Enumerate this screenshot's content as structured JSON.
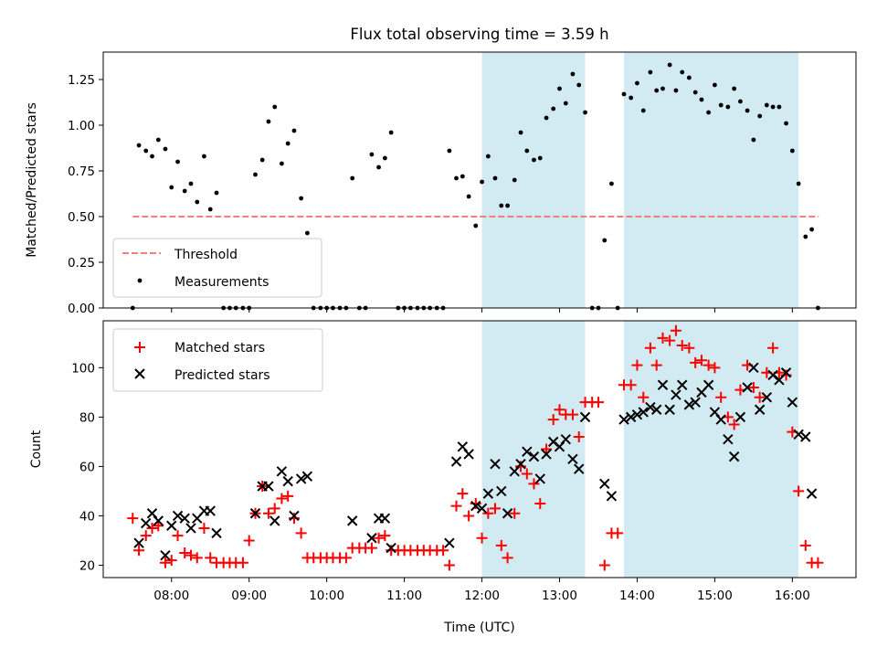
{
  "chart_data": [
    {
      "type": "scatter",
      "panel": "top",
      "title": "Flux total observing time = 3.59 h",
      "xlabel": "",
      "ylabel": "Matched/Predicted stars",
      "ylim": [
        0,
        1.4
      ],
      "xlim": [
        7.12,
        16.82
      ],
      "yticks": [
        0,
        0.25,
        0.5,
        0.75,
        1.0,
        1.25
      ],
      "ytick_labels": [
        "0.00",
        "0.25",
        "0.50",
        "0.75",
        "1.00",
        "1.25"
      ],
      "threshold": {
        "name": "Threshold",
        "value": 0.5,
        "x_range": [
          7.5,
          16.34
        ],
        "color": "#f08080"
      },
      "legend": [
        "Threshold",
        "Measurements"
      ],
      "legend_position": "lower-left",
      "shaded_regions": [
        [
          12.0,
          13.33
        ],
        [
          13.83,
          16.08
        ]
      ],
      "shade_color": "#add8e6",
      "series": [
        {
          "name": "Measurements",
          "color": "#000000",
          "x": [
            7.5,
            7.58,
            7.67,
            7.75,
            7.83,
            7.92,
            8.0,
            8.08,
            8.17,
            8.25,
            8.33,
            8.42,
            8.5,
            8.58,
            8.67,
            8.75,
            8.83,
            8.92,
            9.0,
            9.08,
            9.17,
            9.25,
            9.33,
            9.42,
            9.5,
            9.58,
            9.67,
            9.75,
            9.83,
            9.92,
            10.0,
            10.08,
            10.17,
            10.25,
            10.33,
            10.42,
            10.5,
            10.58,
            10.67,
            10.75,
            10.83,
            10.92,
            11.0,
            11.08,
            11.17,
            11.25,
            11.33,
            11.42,
            11.5,
            11.58,
            11.67,
            11.75,
            11.83,
            11.92,
            12.0,
            12.08,
            12.17,
            12.25,
            12.33,
            12.42,
            12.5,
            12.58,
            12.67,
            12.75,
            12.83,
            12.92,
            13.0,
            13.08,
            13.17,
            13.25,
            13.33,
            13.42,
            13.5,
            13.58,
            13.67,
            13.75,
            13.83,
            13.92,
            14.0,
            14.08,
            14.17,
            14.25,
            14.33,
            14.42,
            14.5,
            14.58,
            14.67,
            14.75,
            14.83,
            14.92,
            15.0,
            15.08,
            15.17,
            15.25,
            15.33,
            15.42,
            15.5,
            15.58,
            15.67,
            15.75,
            15.83,
            15.92,
            16.0,
            16.08,
            16.17,
            16.25,
            16.33
          ],
          "values": [
            0.0,
            0.89,
            0.86,
            0.83,
            0.92,
            0.87,
            0.66,
            0.8,
            0.64,
            0.68,
            0.58,
            0.83,
            0.54,
            0.63,
            0.0,
            0.0,
            0.0,
            0.0,
            0.0,
            0.73,
            0.81,
            1.02,
            1.1,
            0.79,
            0.9,
            0.97,
            0.6,
            0.41,
            0.0,
            0.0,
            0.0,
            0.0,
            0.0,
            0.0,
            0.71,
            0.0,
            0.0,
            0.84,
            0.77,
            0.82,
            0.96,
            0.0,
            0.0,
            0.0,
            0.0,
            0.0,
            0.0,
            0.0,
            0.0,
            0.86,
            0.71,
            0.72,
            0.61,
            0.45,
            0.69,
            0.83,
            0.71,
            0.56,
            0.56,
            0.7,
            0.96,
            0.86,
            0.81,
            0.82,
            1.04,
            1.09,
            1.2,
            1.12,
            1.28,
            1.22,
            1.07,
            0.0,
            0.0,
            0.37,
            0.68,
            0.0,
            1.17,
            1.15,
            1.23,
            1.08,
            1.29,
            1.19,
            1.2,
            1.33,
            1.19,
            1.29,
            1.26,
            1.18,
            1.14,
            1.07,
            1.22,
            1.11,
            1.1,
            1.2,
            1.13,
            1.08,
            0.92,
            1.05,
            1.11,
            1.1,
            1.1,
            1.01,
            0.86,
            0.68,
            0.39,
            0.43,
            0.0
          ]
        }
      ]
    },
    {
      "type": "scatter",
      "panel": "bottom",
      "title": "",
      "xlabel": "Time (UTC)",
      "ylabel": "Count",
      "ylim": [
        15,
        119
      ],
      "xlim": [
        7.12,
        16.82
      ],
      "xticks": [
        8,
        9,
        10,
        11,
        12,
        13,
        14,
        15,
        16
      ],
      "xtick_labels": [
        "08:00",
        "09:00",
        "10:00",
        "11:00",
        "12:00",
        "13:00",
        "14:00",
        "15:00",
        "16:00"
      ],
      "yticks": [
        20,
        40,
        60,
        80,
        100
      ],
      "ytick_labels": [
        "20",
        "40",
        "60",
        "80",
        "100"
      ],
      "legend": [
        "Matched stars",
        "Predicted stars"
      ],
      "legend_position": "upper-left",
      "shaded_regions": [
        [
          12.0,
          13.33
        ],
        [
          13.83,
          16.08
        ]
      ],
      "shade_color": "#add8e6",
      "series": [
        {
          "name": "Matched stars",
          "marker": "plus",
          "color": "#ff0000",
          "x": [
            7.5,
            7.58,
            7.67,
            7.75,
            7.83,
            7.92,
            8.0,
            8.08,
            8.17,
            8.25,
            8.33,
            8.42,
            8.5,
            8.58,
            8.67,
            8.75,
            8.83,
            8.92,
            9.0,
            9.08,
            9.17,
            9.25,
            9.33,
            9.42,
            9.5,
            9.58,
            9.67,
            9.75,
            9.83,
            9.92,
            10.0,
            10.08,
            10.17,
            10.25,
            10.33,
            10.42,
            10.5,
            10.58,
            10.67,
            10.75,
            10.83,
            10.92,
            11.0,
            11.08,
            11.17,
            11.25,
            11.33,
            11.42,
            11.5,
            11.58,
            11.67,
            11.75,
            11.83,
            11.92,
            12.0,
            12.08,
            12.17,
            12.25,
            12.33,
            12.42,
            12.5,
            12.58,
            12.67,
            12.75,
            12.83,
            12.92,
            13.0,
            13.08,
            13.17,
            13.25,
            13.33,
            13.42,
            13.5,
            13.58,
            13.67,
            13.75,
            13.83,
            13.92,
            14.0,
            14.08,
            14.17,
            14.25,
            14.33,
            14.42,
            14.5,
            14.58,
            14.67,
            14.75,
            14.83,
            14.92,
            15.0,
            15.08,
            15.17,
            15.25,
            15.33,
            15.42,
            15.5,
            15.58,
            15.67,
            15.75,
            15.83,
            15.92,
            16.0,
            16.08,
            16.17,
            16.25,
            16.33
          ],
          "values": [
            39,
            26,
            32,
            35,
            36,
            21,
            22,
            32,
            25,
            24,
            23,
            35,
            23,
            21,
            21,
            21,
            21,
            21,
            30,
            41,
            52,
            41,
            43,
            47,
            48,
            39,
            33,
            23,
            23,
            23,
            23,
            23,
            23,
            23,
            27,
            27,
            27,
            27,
            31,
            32,
            26,
            26,
            26,
            26,
            26,
            26,
            26,
            26,
            26,
            20,
            44,
            49,
            40,
            45,
            31,
            41,
            43,
            28,
            23,
            41,
            60,
            57,
            53,
            45,
            67,
            79,
            83,
            81,
            81,
            72,
            86,
            86,
            86,
            20,
            33,
            33,
            93,
            93,
            101,
            88,
            108,
            101,
            112,
            111,
            115,
            109,
            108,
            102,
            103,
            101,
            100,
            88,
            80,
            77,
            91,
            101,
            92,
            88,
            98,
            108,
            98,
            97,
            74,
            50,
            28,
            21,
            21
          ]
        },
        {
          "name": "Predicted stars",
          "marker": "cross",
          "color": "#000000",
          "x": [
            7.58,
            7.67,
            7.75,
            7.83,
            7.92,
            8.0,
            8.08,
            8.17,
            8.25,
            8.33,
            8.42,
            8.5,
            8.58,
            9.08,
            9.17,
            9.25,
            9.33,
            9.42,
            9.5,
            9.58,
            9.67,
            9.75,
            10.33,
            10.58,
            10.67,
            10.75,
            10.83,
            11.58,
            11.67,
            11.75,
            11.83,
            11.92,
            12.0,
            12.08,
            12.17,
            12.25,
            12.33,
            12.42,
            12.5,
            12.58,
            12.67,
            12.75,
            12.83,
            12.92,
            13.0,
            13.08,
            13.17,
            13.25,
            13.33,
            13.58,
            13.67,
            13.83,
            13.92,
            14.0,
            14.08,
            14.17,
            14.25,
            14.33,
            14.42,
            14.5,
            14.58,
            14.67,
            14.75,
            14.83,
            14.92,
            15.0,
            15.08,
            15.17,
            15.25,
            15.33,
            15.42,
            15.5,
            15.58,
            15.67,
            15.75,
            15.83,
            15.92,
            16.0,
            16.08,
            16.17,
            16.25
          ],
          "values": [
            29,
            37,
            41,
            38,
            24,
            36,
            40,
            39,
            35,
            39,
            42,
            42,
            33,
            41,
            52,
            52,
            38,
            58,
            54,
            40,
            55,
            56,
            38,
            31,
            39,
            39,
            27,
            29,
            62,
            68,
            65,
            44,
            43,
            49,
            61,
            50,
            41,
            58,
            61,
            66,
            64,
            55,
            65,
            70,
            68,
            71,
            63,
            59,
            80,
            53,
            48,
            79,
            80,
            81,
            82,
            84,
            83,
            93,
            83,
            89,
            93,
            85,
            86,
            90,
            93,
            82,
            79,
            71,
            64,
            80,
            92,
            100,
            83,
            88,
            97,
            95,
            98,
            86,
            73,
            72,
            49
          ]
        }
      ]
    }
  ]
}
